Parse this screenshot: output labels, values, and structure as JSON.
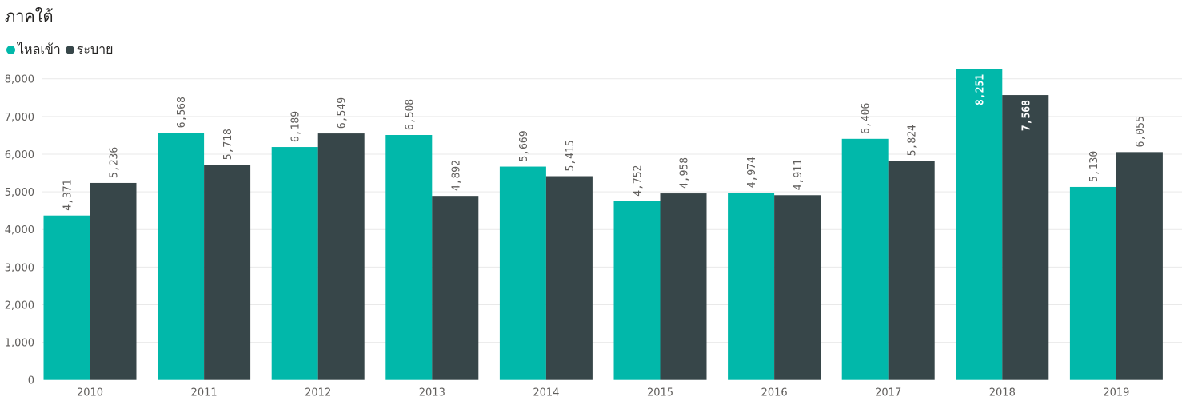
{
  "chart_data": {
    "type": "bar",
    "title": "ภาคใต้",
    "legend_position": "top-left",
    "grid": true,
    "categories": [
      "2010",
      "2011",
      "2012",
      "2013",
      "2014",
      "2015",
      "2016",
      "2017",
      "2018",
      "2019"
    ],
    "series": [
      {
        "name": "ไหลเข้า",
        "color": "#01b8aa",
        "values": [
          4371,
          6568,
          6189,
          6508,
          5669,
          4752,
          4974,
          6406,
          8251,
          5130
        ],
        "labels": [
          "4,371",
          "6,568",
          "6,189",
          "6,508",
          "5,669",
          "4,752",
          "4,974",
          "6,406",
          "8,251",
          "5,130"
        ]
      },
      {
        "name": "ระบาย",
        "color": "#374649",
        "values": [
          5236,
          5718,
          6549,
          4892,
          5415,
          4958,
          4911,
          5824,
          7568,
          6055
        ],
        "labels": [
          "5,236",
          "5,718",
          "6,549",
          "4,892",
          "5,415",
          "4,958",
          "4,911",
          "5,824",
          "7,568",
          "6,055"
        ]
      }
    ],
    "ylim": [
      0,
      8000
    ],
    "yticks": [
      0,
      1000,
      2000,
      3000,
      4000,
      5000,
      6000,
      7000,
      8000
    ],
    "ytick_labels": [
      "0",
      "1,000",
      "2,000",
      "3,000",
      "4,000",
      "5,000",
      "6,000",
      "7,000",
      "8,000"
    ]
  }
}
